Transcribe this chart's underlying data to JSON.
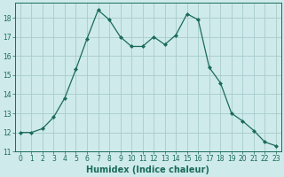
{
  "x": [
    0,
    1,
    2,
    3,
    4,
    5,
    6,
    7,
    8,
    9,
    10,
    11,
    12,
    13,
    14,
    15,
    16,
    17,
    18,
    19,
    20,
    21,
    22,
    23
  ],
  "y": [
    12.0,
    12.0,
    12.2,
    12.8,
    13.8,
    15.3,
    16.9,
    18.4,
    17.9,
    17.0,
    16.5,
    16.5,
    17.0,
    16.6,
    17.1,
    18.2,
    17.9,
    15.4,
    14.6,
    13.0,
    12.6,
    12.1,
    11.5,
    11.3
  ],
  "line_color": "#1a6b5a",
  "marker": "D",
  "marker_size": 2,
  "bg_color": "#ceeaea",
  "grid_color": "#a8cccc",
  "xlabel": "Humidex (Indice chaleur)",
  "xlim": [
    -0.5,
    23.5
  ],
  "ylim": [
    11,
    18.8
  ],
  "yticks": [
    11,
    12,
    13,
    14,
    15,
    16,
    17,
    18
  ],
  "xticks": [
    0,
    1,
    2,
    3,
    4,
    5,
    6,
    7,
    8,
    9,
    10,
    11,
    12,
    13,
    14,
    15,
    16,
    17,
    18,
    19,
    20,
    21,
    22,
    23
  ],
  "tick_fontsize": 5.5,
  "xlabel_fontsize": 7
}
